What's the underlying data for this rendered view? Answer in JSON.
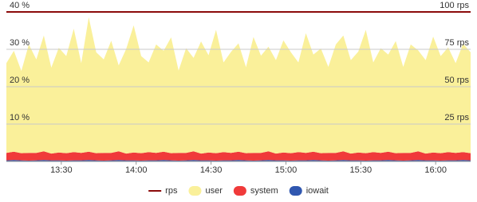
{
  "chart_data": {
    "type": "stacked-area",
    "x": [
      "13:08",
      "13:11",
      "13:14",
      "13:17",
      "13:20",
      "13:23",
      "13:26",
      "13:29",
      "13:32",
      "13:35",
      "13:38",
      "13:41",
      "13:44",
      "13:47",
      "13:50",
      "13:53",
      "13:56",
      "13:59",
      "14:02",
      "14:05",
      "14:08",
      "14:11",
      "14:14",
      "14:17",
      "14:20",
      "14:23",
      "14:26",
      "14:29",
      "14:32",
      "14:35",
      "14:38",
      "14:41",
      "14:44",
      "14:47",
      "14:50",
      "14:53",
      "14:56",
      "14:59",
      "15:02",
      "15:05",
      "15:08",
      "15:11",
      "15:14",
      "15:17",
      "15:20",
      "15:23",
      "15:26",
      "15:29",
      "15:32",
      "15:35",
      "15:38",
      "15:41",
      "15:44",
      "15:47",
      "15:50",
      "15:53",
      "15:56",
      "15:59",
      "16:02",
      "16:05",
      "16:08",
      "16:11",
      "16:14"
    ],
    "xlim": [
      "13:08",
      "16:14"
    ],
    "xticks": [
      "13:30",
      "14:00",
      "14:30",
      "15:00",
      "15:30",
      "16:00"
    ],
    "ylim": [
      0,
      40
    ],
    "yticks": [
      {
        "value": 10,
        "label": "10 %"
      },
      {
        "value": 20,
        "label": "20 %"
      },
      {
        "value": 30,
        "label": "30 %"
      },
      {
        "value": 40,
        "label": "40 %"
      }
    ],
    "y2lim": [
      0,
      100
    ],
    "y2ticks": [
      {
        "value": 25,
        "label": "25 rps"
      },
      {
        "value": 50,
        "label": "50 rps"
      },
      {
        "value": 75,
        "label": "75 rps"
      },
      {
        "value": 100,
        "label": "100 rps"
      }
    ],
    "grid": true,
    "legend": "bottom",
    "series": [
      {
        "name": "rps",
        "color": "#8b0a0a",
        "axis": "y2",
        "kind": "line",
        "values": [
          100,
          100,
          100,
          100,
          100,
          100,
          100,
          100,
          100,
          100,
          100,
          100,
          100,
          100,
          100,
          100,
          100,
          100,
          100,
          100,
          100,
          100,
          100,
          100,
          100,
          100,
          100,
          100,
          100,
          100,
          100,
          100,
          100,
          100,
          100,
          100,
          100,
          100,
          100,
          100,
          100,
          100,
          100,
          100,
          100,
          100,
          100,
          100,
          100,
          100,
          100,
          100,
          100,
          100,
          100,
          100,
          100,
          100,
          100,
          100,
          100,
          100,
          100
        ]
      },
      {
        "name": "user",
        "color": "#faf09a",
        "kind": "area",
        "values": [
          24,
          27,
          22,
          29,
          25,
          31,
          23,
          28,
          26,
          33,
          24,
          36,
          27,
          25,
          30,
          23,
          28,
          34,
          26,
          24,
          29,
          27,
          31,
          22,
          28,
          25,
          30,
          26,
          33,
          24,
          27,
          29,
          23,
          31,
          26,
          28,
          25,
          30,
          27,
          24,
          32,
          26,
          28,
          23,
          29,
          31,
          25,
          27,
          33,
          24,
          28,
          26,
          30,
          23,
          29,
          27,
          25,
          31,
          26,
          28,
          24,
          29,
          27
        ]
      },
      {
        "name": "system",
        "color": "#f03a3a",
        "kind": "area",
        "values": [
          2,
          2.2,
          1.9,
          2.1,
          2,
          2.3,
          1.8,
          2.1,
          2,
          2.2,
          2,
          2.2,
          1.9,
          2.1,
          2,
          2.3,
          1.8,
          2.1,
          2,
          2.2,
          2,
          2.2,
          1.9,
          2.1,
          2,
          2.3,
          1.8,
          2.1,
          2,
          2.2,
          2,
          2.2,
          1.9,
          2.1,
          2,
          2.3,
          1.8,
          2.1,
          2,
          2.2,
          2,
          2.2,
          1.9,
          2.1,
          2,
          2.3,
          1.8,
          2.1,
          2,
          2.2,
          2,
          2.2,
          1.9,
          2.1,
          2,
          2.3,
          1.8,
          2.1,
          2,
          2.2,
          2,
          2.1,
          1.9
        ]
      },
      {
        "name": "iowait",
        "color": "#3057b0",
        "kind": "area",
        "values": [
          0.3,
          0.4,
          0.3,
          0.2,
          0.3,
          0.4,
          0.3,
          0.3,
          0.2,
          0.3,
          0.3,
          0.4,
          0.3,
          0.2,
          0.3,
          0.4,
          0.3,
          0.3,
          0.2,
          0.3,
          0.3,
          0.4,
          0.3,
          0.2,
          0.3,
          0.4,
          0.3,
          0.3,
          0.2,
          0.3,
          0.3,
          0.4,
          0.3,
          0.2,
          0.3,
          0.4,
          0.3,
          0.3,
          0.2,
          0.3,
          0.3,
          0.4,
          0.3,
          0.2,
          0.3,
          0.4,
          0.3,
          0.3,
          0.2,
          0.3,
          0.3,
          0.4,
          0.3,
          0.2,
          0.3,
          0.4,
          0.3,
          0.3,
          0.2,
          0.3,
          0.3,
          0.4,
          0.3
        ]
      }
    ]
  }
}
